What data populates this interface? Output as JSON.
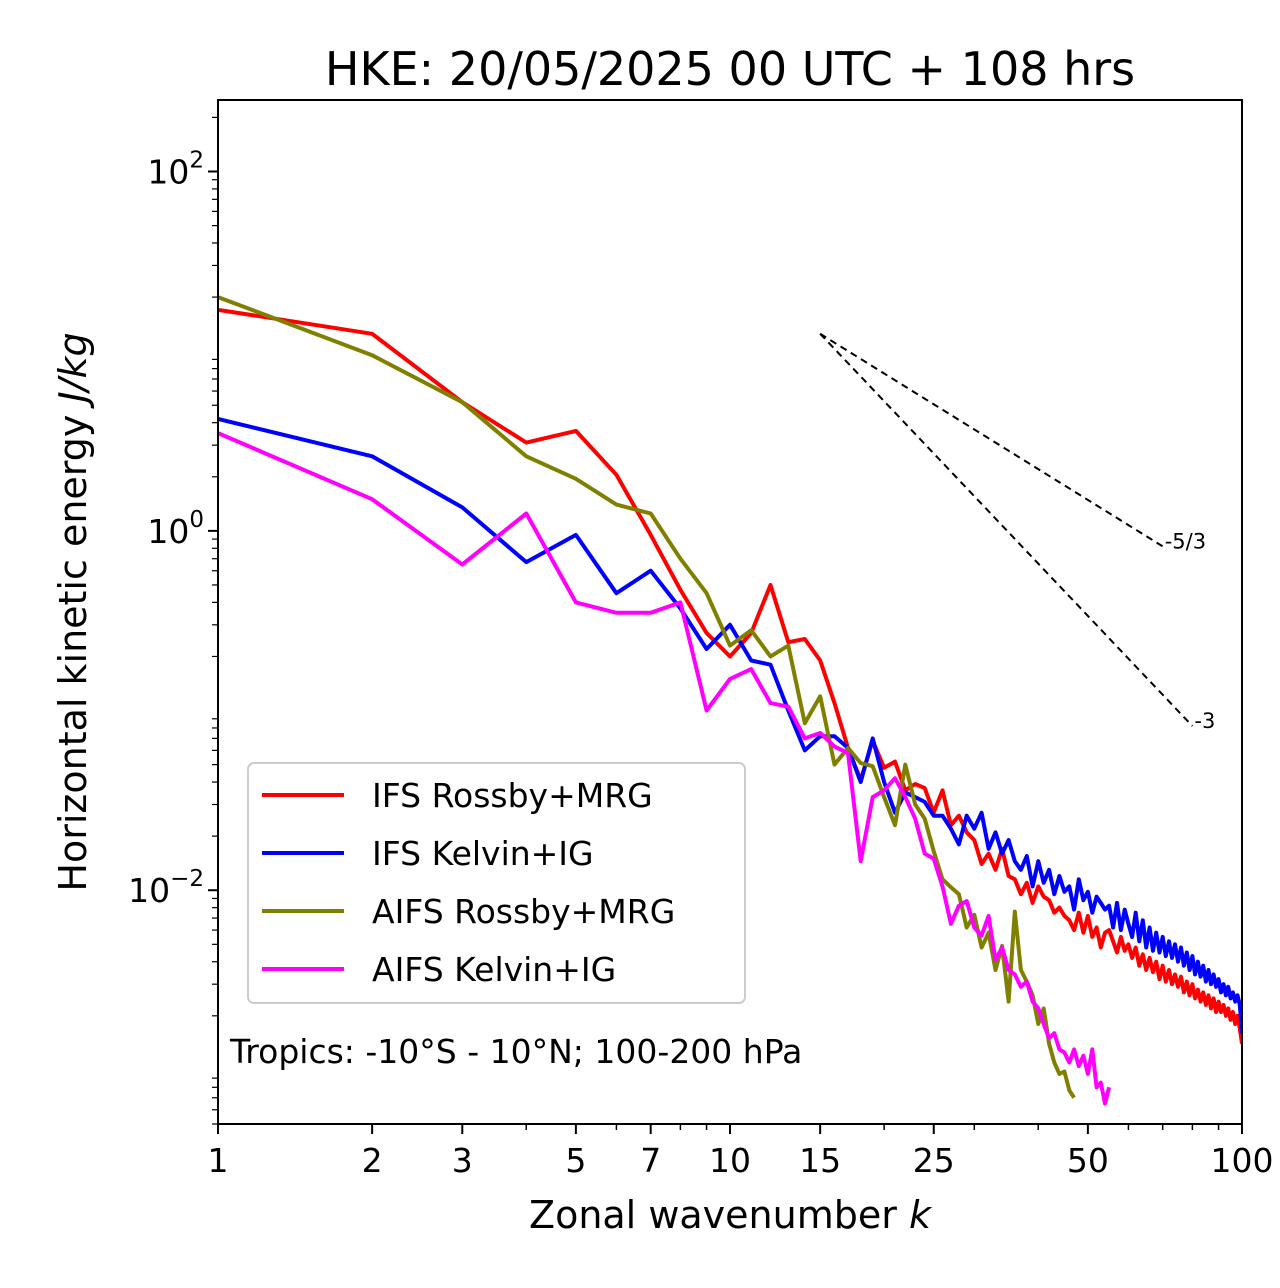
{
  "chart_data": {
    "type": "line",
    "title": "HKE: 20/05/2025 00 UTC + 108 hrs",
    "xlabel": "Zonal wavenumber",
    "xlabel_symbol": "k",
    "ylabel": "Horizontal kinetic energy",
    "ylabel_unit": "J/kg",
    "x_scale": "log",
    "y_scale": "log",
    "xlim": [
      1,
      100
    ],
    "ylim": [
      0.0005,
      250
    ],
    "x_ticks": [
      1,
      2,
      3,
      5,
      7,
      10,
      15,
      25,
      50,
      100
    ],
    "x_tick_labels": [
      "1",
      "2",
      "3",
      "5",
      "7",
      "10",
      "15",
      "25",
      "50",
      "100"
    ],
    "y_ticks": [
      0.01,
      1,
      100
    ],
    "y_tick_labels": [
      {
        "base": "10",
        "exp": "−2"
      },
      {
        "base": "10",
        "exp": "0"
      },
      {
        "base": "10",
        "exp": "2"
      }
    ],
    "grid": false,
    "legend_position": "lower-left",
    "annotation": "Tropics: -10°S - 10°N; 100-200 hPa",
    "reference_slopes": [
      {
        "label": "-5/3",
        "x": [
          15,
          70
        ],
        "y": [
          12.5,
          0.82
        ]
      },
      {
        "label": "-3",
        "x": [
          15,
          80
        ],
        "y": [
          12.5,
          0.082
        ]
      }
    ],
    "series": [
      {
        "name": "IFS Rossby+MRG",
        "color": "#ff0000",
        "x": [
          1,
          2,
          3,
          4,
          5,
          6,
          7,
          8,
          9,
          10,
          11,
          12,
          13,
          14,
          15,
          16,
          17,
          18,
          19,
          20,
          21,
          22,
          23,
          24,
          25,
          26,
          27,
          28,
          29,
          30,
          31,
          32,
          33,
          34,
          35,
          36,
          37,
          38,
          39,
          40,
          41,
          42,
          43,
          44,
          45,
          46,
          47,
          48,
          49,
          50,
          51,
          52,
          53,
          54,
          55,
          56,
          57,
          58,
          59,
          60,
          61,
          62,
          63,
          64,
          65,
          66,
          67,
          68,
          69,
          70,
          71,
          72,
          73,
          74,
          75,
          76,
          77,
          78,
          79,
          80,
          81,
          82,
          83,
          84,
          85,
          86,
          87,
          88,
          89,
          90,
          91,
          92,
          93,
          94,
          95,
          96,
          97,
          98,
          99,
          100
        ],
        "y": [
          17,
          12.5,
          5.2,
          3.1,
          3.6,
          2.05,
          0.95,
          0.47,
          0.27,
          0.2,
          0.27,
          0.5,
          0.24,
          0.25,
          0.19,
          0.11,
          0.062,
          0.041,
          0.068,
          0.048,
          0.052,
          0.036,
          0.039,
          0.037,
          0.027,
          0.036,
          0.023,
          0.026,
          0.021,
          0.019,
          0.014,
          0.016,
          0.013,
          0.017,
          0.012,
          0.0115,
          0.0095,
          0.011,
          0.0085,
          0.0105,
          0.0092,
          0.0088,
          0.0075,
          0.008,
          0.0072,
          0.0068,
          0.006,
          0.0075,
          0.0058,
          0.0072,
          0.0055,
          0.0062,
          0.0048,
          0.0058,
          0.006,
          0.0052,
          0.0045,
          0.0055,
          0.0046,
          0.005,
          0.0042,
          0.0048,
          0.0038,
          0.0044,
          0.0036,
          0.0042,
          0.0035,
          0.004,
          0.0032,
          0.0038,
          0.0031,
          0.0036,
          0.003,
          0.0034,
          0.0029,
          0.0033,
          0.0027,
          0.0031,
          0.0026,
          0.003,
          0.0025,
          0.0028,
          0.0024,
          0.0027,
          0.0023,
          0.0026,
          0.0022,
          0.0025,
          0.0021,
          0.0024,
          0.0021,
          0.0023,
          0.002,
          0.0022,
          0.0019,
          0.0021,
          0.0018,
          0.002,
          0.0017,
          0.0014
        ]
      },
      {
        "name": "IFS Kelvin+IG",
        "color": "#0000ff",
        "x": [
          1,
          2,
          3,
          4,
          5,
          6,
          7,
          8,
          9,
          10,
          11,
          12,
          13,
          14,
          15,
          16,
          17,
          18,
          19,
          20,
          21,
          22,
          23,
          24,
          25,
          26,
          27,
          28,
          29,
          30,
          31,
          32,
          33,
          34,
          35,
          36,
          37,
          38,
          39,
          40,
          41,
          42,
          43,
          44,
          45,
          46,
          47,
          48,
          49,
          50,
          51,
          52,
          53,
          54,
          55,
          56,
          57,
          58,
          59,
          60,
          61,
          62,
          63,
          64,
          65,
          66,
          67,
          68,
          69,
          70,
          71,
          72,
          73,
          74,
          75,
          76,
          77,
          78,
          79,
          80,
          81,
          82,
          83,
          84,
          85,
          86,
          87,
          88,
          89,
          90,
          91,
          92,
          93,
          94,
          95,
          96,
          97,
          98,
          99,
          100
        ],
        "y": [
          4.2,
          2.6,
          1.35,
          0.67,
          0.95,
          0.45,
          0.6,
          0.37,
          0.22,
          0.3,
          0.19,
          0.18,
          0.1,
          0.06,
          0.072,
          0.072,
          0.062,
          0.04,
          0.07,
          0.04,
          0.027,
          0.035,
          0.033,
          0.031,
          0.026,
          0.026,
          0.022,
          0.018,
          0.026,
          0.022,
          0.027,
          0.017,
          0.021,
          0.016,
          0.019,
          0.0145,
          0.013,
          0.0155,
          0.0105,
          0.0145,
          0.011,
          0.013,
          0.0095,
          0.012,
          0.0098,
          0.0105,
          0.0078,
          0.0115,
          0.0088,
          0.0098,
          0.0075,
          0.0092,
          0.0085,
          0.0078,
          0.0082,
          0.0062,
          0.0085,
          0.006,
          0.0078,
          0.0065,
          0.0055,
          0.0075,
          0.0052,
          0.0068,
          0.0048,
          0.0062,
          0.0046,
          0.0058,
          0.0045,
          0.0055,
          0.0043,
          0.0052,
          0.0042,
          0.005,
          0.004,
          0.0048,
          0.0038,
          0.0045,
          0.0036,
          0.0043,
          0.0034,
          0.004,
          0.0033,
          0.0038,
          0.0031,
          0.0036,
          0.003,
          0.0034,
          0.0029,
          0.0032,
          0.0027,
          0.003,
          0.0026,
          0.0029,
          0.0025,
          0.0027,
          0.0024,
          0.0026,
          0.0023,
          0.0016
        ]
      },
      {
        "name": "AIFS Rossby+MRG",
        "color": "#808000",
        "x": [
          1,
          2,
          3,
          4,
          5,
          6,
          7,
          8,
          9,
          10,
          11,
          12,
          13,
          14,
          15,
          16,
          17,
          18,
          19,
          20,
          21,
          22,
          23,
          24,
          25,
          26,
          27,
          28,
          29,
          30,
          31,
          32,
          33,
          34,
          35,
          36,
          37,
          38,
          39,
          40,
          41,
          42,
          43,
          44,
          45,
          46,
          47
        ],
        "y": [
          20,
          9.5,
          5.2,
          2.6,
          1.95,
          1.4,
          1.25,
          0.7,
          0.45,
          0.23,
          0.28,
          0.2,
          0.23,
          0.085,
          0.12,
          0.05,
          0.062,
          0.051,
          0.049,
          0.033,
          0.023,
          0.05,
          0.03,
          0.025,
          0.0165,
          0.0115,
          0.0104,
          0.0095,
          0.0062,
          0.0073,
          0.0048,
          0.0058,
          0.0036,
          0.0049,
          0.0024,
          0.0076,
          0.0036,
          0.0031,
          0.0026,
          0.0018,
          0.0022,
          0.0014,
          0.0011,
          0.00095,
          0.00098,
          0.00077,
          0.0007
        ]
      },
      {
        "name": "AIFS Kelvin+IG",
        "color": "#ff00ff",
        "x": [
          1,
          2,
          3,
          4,
          5,
          6,
          7,
          8,
          9,
          10,
          11,
          12,
          13,
          14,
          15,
          16,
          17,
          18,
          19,
          20,
          21,
          22,
          23,
          24,
          25,
          26,
          27,
          28,
          29,
          30,
          31,
          32,
          33,
          34,
          35,
          36,
          37,
          38,
          39,
          40,
          41,
          42,
          43,
          44,
          45,
          46,
          47,
          48,
          49,
          50,
          51,
          52,
          53,
          54,
          55
        ],
        "y": [
          3.5,
          1.5,
          0.65,
          1.25,
          0.4,
          0.35,
          0.35,
          0.4,
          0.1,
          0.15,
          0.17,
          0.11,
          0.105,
          0.07,
          0.075,
          0.063,
          0.058,
          0.0145,
          0.033,
          0.036,
          0.042,
          0.033,
          0.025,
          0.016,
          0.015,
          0.0105,
          0.0065,
          0.0082,
          0.0087,
          0.0062,
          0.0056,
          0.0072,
          0.0041,
          0.0048,
          0.0036,
          0.0034,
          0.0029,
          0.0031,
          0.0024,
          0.0022,
          0.0018,
          0.0015,
          0.0016,
          0.0013,
          0.00125,
          0.0011,
          0.0013,
          0.00105,
          0.0012,
          0.00095,
          0.0013,
          0.0008,
          0.00085,
          0.00065,
          0.0008
        ]
      }
    ]
  }
}
